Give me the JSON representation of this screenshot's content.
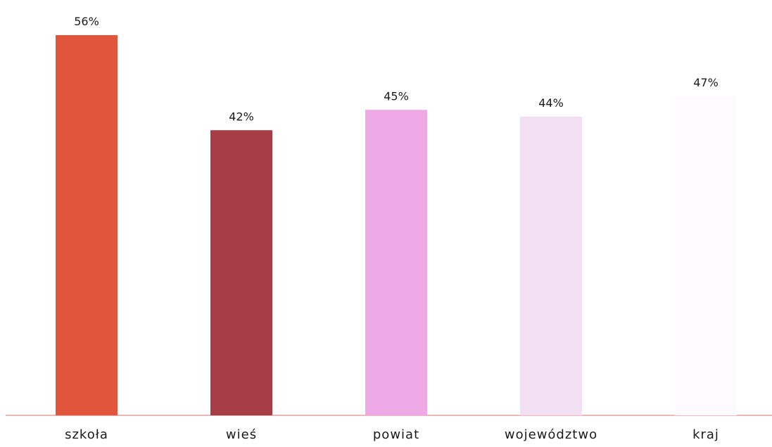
{
  "chart_data": {
    "type": "bar",
    "title": "",
    "xlabel": "",
    "ylabel": "",
    "categories": [
      "szkoła",
      "wieś",
      "powiat",
      "województwo",
      "kraj"
    ],
    "values": [
      56,
      42,
      45,
      44,
      47
    ],
    "value_labels": [
      "56%",
      "42%",
      "45%",
      "44%",
      "47%"
    ],
    "unit": "%",
    "ylim": [
      0,
      56
    ],
    "grid": false,
    "legend": "none",
    "bar_colors": [
      "#e0553b",
      "#a63c44",
      "#efa9e6",
      "#f3dff2",
      "#fdfbfd"
    ],
    "baseline_color": "#e8a0a0"
  }
}
